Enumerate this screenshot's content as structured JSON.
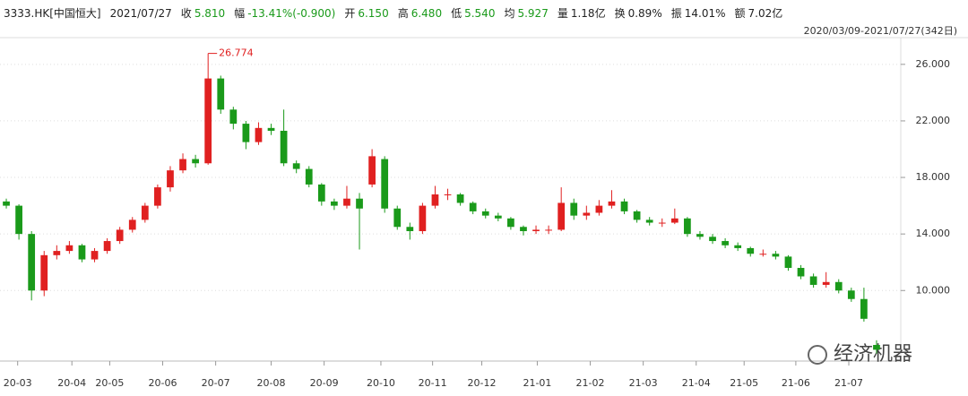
{
  "header": {
    "symbol": "3333.HK[中国恒大]",
    "date": "2021/07/27",
    "fields": [
      [
        "收",
        "5.810"
      ],
      [
        "幅",
        "-13.41%(-0.900)"
      ],
      [
        "开",
        "6.150"
      ],
      [
        "高",
        "6.480"
      ],
      [
        "低",
        "5.540"
      ],
      [
        "均",
        "5.927"
      ],
      [
        "量",
        "1.18亿"
      ],
      [
        "换",
        "0.89%"
      ],
      [
        "振",
        "14.01%"
      ],
      [
        "额",
        "7.02亿"
      ]
    ],
    "range": "2020/03/09-2021/07/27(342日)"
  },
  "watermark": "经济机器",
  "chart_data": {
    "type": "candlestick",
    "up_color": "#e02020",
    "down_color": "#1a9a1a",
    "grid": true,
    "xlim": [
      -0.5,
      69.5
    ],
    "ylim": [
      5.2,
      27.7
    ],
    "yticks": [
      {
        "value": 10,
        "label": "10.000"
      },
      {
        "value": 14,
        "label": "14.000"
      },
      {
        "value": 18,
        "label": "18.000"
      },
      {
        "value": 22,
        "label": "22.000"
      },
      {
        "value": 26,
        "label": "26.000"
      }
    ],
    "xticks": [
      {
        "value": 0.9,
        "label": "20-03"
      },
      {
        "value": 5.2,
        "label": "20-04"
      },
      {
        "value": 8.2,
        "label": "20-05"
      },
      {
        "value": 12.4,
        "label": "20-06"
      },
      {
        "value": 16.6,
        "label": "20-07"
      },
      {
        "value": 21,
        "label": "20-08"
      },
      {
        "value": 25.2,
        "label": "20-09"
      },
      {
        "value": 29.7,
        "label": "20-10"
      },
      {
        "value": 33.8,
        "label": "20-11"
      },
      {
        "value": 37.7,
        "label": "20-12"
      },
      {
        "value": 42.1,
        "label": "21-01"
      },
      {
        "value": 46.3,
        "label": "21-02"
      },
      {
        "value": 50.5,
        "label": "21-03"
      },
      {
        "value": 54.7,
        "label": "21-04"
      },
      {
        "value": 58.5,
        "label": "21-05"
      },
      {
        "value": 62.6,
        "label": "21-06"
      },
      {
        "value": 66.8,
        "label": "21-07"
      }
    ],
    "max_index": 16,
    "ohlc": [
      [
        16.3,
        16.5,
        15.8,
        16.0
      ],
      [
        16.0,
        16.1,
        13.6,
        14.0
      ],
      [
        14.0,
        14.2,
        9.3,
        10.0
      ],
      [
        10.0,
        12.8,
        9.6,
        12.5
      ],
      [
        12.5,
        13.2,
        12.2,
        12.8
      ],
      [
        12.8,
        13.5,
        12.6,
        13.2
      ],
      [
        13.2,
        13.3,
        12.0,
        12.2
      ],
      [
        12.2,
        13.0,
        12.0,
        12.8
      ],
      [
        12.8,
        13.7,
        12.6,
        13.5
      ],
      [
        13.5,
        14.5,
        13.3,
        14.3
      ],
      [
        14.3,
        15.2,
        14.1,
        15.0
      ],
      [
        15.0,
        16.2,
        14.8,
        16.0
      ],
      [
        16.0,
        17.5,
        15.8,
        17.3
      ],
      [
        17.3,
        18.8,
        17.0,
        18.5
      ],
      [
        18.5,
        19.7,
        18.3,
        19.3
      ],
      [
        19.3,
        19.6,
        18.7,
        19.0
      ],
      [
        19.0,
        26.774,
        18.9,
        25.0
      ],
      [
        25.0,
        25.2,
        22.5,
        22.8
      ],
      [
        22.8,
        23.0,
        21.4,
        21.8
      ],
      [
        21.8,
        22.0,
        20.0,
        20.5
      ],
      [
        20.5,
        21.9,
        20.3,
        21.5
      ],
      [
        21.5,
        21.8,
        21.0,
        21.3
      ],
      [
        21.3,
        22.8,
        18.8,
        19.0
      ],
      [
        19.0,
        19.2,
        18.3,
        18.6
      ],
      [
        18.6,
        18.8,
        17.3,
        17.5
      ],
      [
        17.5,
        17.6,
        16.0,
        16.3
      ],
      [
        16.3,
        16.5,
        15.7,
        16.0
      ],
      [
        16.0,
        17.4,
        15.8,
        16.5
      ],
      [
        16.5,
        16.9,
        12.9,
        15.8
      ],
      [
        17.5,
        20.0,
        17.3,
        19.5
      ],
      [
        19.3,
        19.5,
        15.5,
        15.8
      ],
      [
        15.8,
        16.0,
        14.3,
        14.5
      ],
      [
        14.5,
        14.8,
        13.6,
        14.2
      ],
      [
        14.2,
        16.2,
        14.0,
        16.0
      ],
      [
        16.0,
        17.4,
        15.8,
        16.8
      ],
      [
        16.8,
        17.2,
        16.4,
        16.8
      ],
      [
        16.8,
        16.9,
        16.0,
        16.2
      ],
      [
        16.2,
        16.3,
        15.4,
        15.6
      ],
      [
        15.6,
        15.8,
        15.1,
        15.3
      ],
      [
        15.3,
        15.5,
        14.9,
        15.1
      ],
      [
        15.1,
        15.2,
        14.3,
        14.5
      ],
      [
        14.5,
        14.6,
        13.9,
        14.2
      ],
      [
        14.2,
        14.6,
        14.0,
        14.3
      ],
      [
        14.3,
        14.6,
        14.0,
        14.3
      ],
      [
        14.3,
        17.3,
        14.2,
        16.2
      ],
      [
        16.2,
        16.5,
        15.0,
        15.3
      ],
      [
        15.3,
        16.0,
        15.0,
        15.5
      ],
      [
        15.5,
        16.4,
        15.3,
        16.0
      ],
      [
        16.0,
        17.1,
        15.8,
        16.3
      ],
      [
        16.3,
        16.5,
        15.4,
        15.6
      ],
      [
        15.6,
        15.7,
        14.8,
        15.0
      ],
      [
        15.0,
        15.2,
        14.6,
        14.8
      ],
      [
        14.8,
        15.1,
        14.5,
        14.8
      ],
      [
        14.8,
        15.8,
        14.7,
        15.1
      ],
      [
        15.1,
        15.2,
        13.8,
        14.0
      ],
      [
        14.0,
        14.2,
        13.6,
        13.8
      ],
      [
        13.8,
        14.0,
        13.3,
        13.5
      ],
      [
        13.5,
        13.7,
        13.0,
        13.2
      ],
      [
        13.2,
        13.4,
        12.8,
        13.0
      ],
      [
        13.0,
        13.1,
        12.4,
        12.6
      ],
      [
        12.6,
        12.9,
        12.4,
        12.6
      ],
      [
        12.6,
        12.8,
        12.2,
        12.4
      ],
      [
        12.4,
        12.5,
        11.4,
        11.6
      ],
      [
        11.6,
        11.8,
        10.8,
        11.0
      ],
      [
        11.0,
        11.2,
        10.2,
        10.4
      ],
      [
        10.4,
        11.3,
        10.2,
        10.6
      ],
      [
        10.6,
        10.8,
        9.8,
        10.0
      ],
      [
        10.0,
        10.2,
        9.2,
        9.4
      ],
      [
        9.4,
        10.2,
        7.8,
        8.0
      ],
      [
        6.15,
        6.48,
        5.54,
        5.81
      ]
    ]
  }
}
